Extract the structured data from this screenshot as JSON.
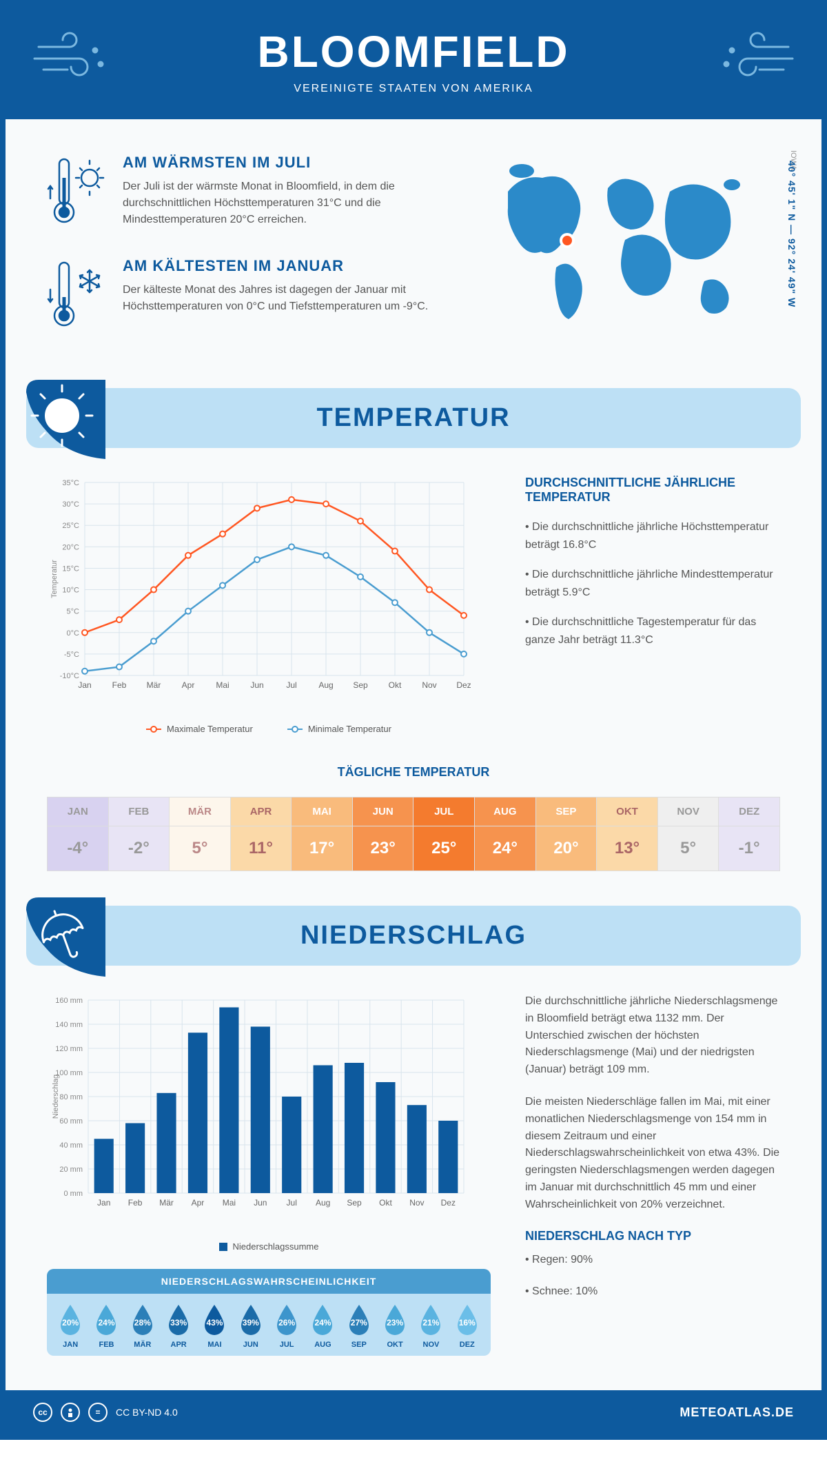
{
  "header": {
    "title": "BLOOMFIELD",
    "subtitle": "VEREINIGTE STAATEN VON AMERIKA"
  },
  "intro": {
    "warmest": {
      "title": "AM WÄRMSTEN IM JULI",
      "text": "Der Juli ist der wärmste Monat in Bloomfield, in dem die durchschnittlichen Höchsttemperaturen 31°C und die Mindesttemperaturen 20°C erreichen."
    },
    "coldest": {
      "title": "AM KÄLTESTEN IM JANUAR",
      "text": "Der kälteste Monat des Jahres ist dagegen der Januar mit Höchsttemperaturen von 0°C und Tiefsttemperaturen um -9°C."
    },
    "region": "IOWA",
    "coords": "40° 45' 1\" N — 92° 24' 49\" W"
  },
  "temperature": {
    "section_title": "TEMPERATUR",
    "chart": {
      "type": "line",
      "months": [
        "Jan",
        "Feb",
        "Mär",
        "Apr",
        "Mai",
        "Jun",
        "Jul",
        "Aug",
        "Sep",
        "Okt",
        "Nov",
        "Dez"
      ],
      "max_series": [
        0,
        3,
        10,
        18,
        23,
        29,
        31,
        30,
        26,
        19,
        10,
        4
      ],
      "min_series": [
        -9,
        -8,
        -2,
        5,
        11,
        17,
        20,
        18,
        13,
        7,
        0,
        -5
      ],
      "max_color": "#ff5722",
      "min_color": "#4a9dd0",
      "yaxis_label": "Temperatur",
      "ylim": [
        -10,
        35
      ],
      "ytick_step": 5,
      "grid_color": "#d8e4ec",
      "background": "#ffffff",
      "legend_max": "Maximale Temperatur",
      "legend_min": "Minimale Temperatur"
    },
    "info": {
      "title": "DURCHSCHNITTLICHE JÄHRLICHE TEMPERATUR",
      "bullets": [
        "• Die durchschnittliche jährliche Höchsttemperatur beträgt 16.8°C",
        "• Die durchschnittliche jährliche Mindesttemperatur beträgt 5.9°C",
        "• Die durchschnittliche Tagestemperatur für das ganze Jahr beträgt 11.3°C"
      ]
    },
    "daily": {
      "title": "TÄGLICHE TEMPERATUR",
      "months": [
        "JAN",
        "FEB",
        "MÄR",
        "APR",
        "MAI",
        "JUN",
        "JUL",
        "AUG",
        "SEP",
        "OKT",
        "NOV",
        "DEZ"
      ],
      "values": [
        "-4°",
        "-2°",
        "5°",
        "11°",
        "17°",
        "23°",
        "25°",
        "24°",
        "20°",
        "13°",
        "5°",
        "-1°"
      ],
      "bg_colors": [
        "#d8d2f0",
        "#e8e4f5",
        "#fdf6ec",
        "#fbd9a8",
        "#f9bb7c",
        "#f6934e",
        "#f47b2e",
        "#f6934e",
        "#f9bb7c",
        "#fbd9a8",
        "#efefef",
        "#e8e4f5"
      ],
      "text_colors": [
        "#999",
        "#999",
        "#b88",
        "#a66",
        "#fff",
        "#fff",
        "#fff",
        "#fff",
        "#fff",
        "#a66",
        "#999",
        "#999"
      ]
    }
  },
  "precipitation": {
    "section_title": "NIEDERSCHLAG",
    "chart": {
      "type": "bar",
      "months": [
        "Jan",
        "Feb",
        "Mär",
        "Apr",
        "Mai",
        "Jun",
        "Jul",
        "Aug",
        "Sep",
        "Okt",
        "Nov",
        "Dez"
      ],
      "values": [
        45,
        58,
        83,
        133,
        154,
        138,
        80,
        106,
        108,
        92,
        73,
        60
      ],
      "bar_color": "#0d5a9e",
      "yaxis_label": "Niederschlag",
      "ylim": [
        0,
        160
      ],
      "ytick_step": 20,
      "grid_color": "#d8e4ec",
      "legend": "Niederschlagssumme"
    },
    "text": {
      "p1": "Die durchschnittliche jährliche Niederschlagsmenge in Bloomfield beträgt etwa 1132 mm. Der Unterschied zwischen der höchsten Niederschlagsmenge (Mai) und der niedrigsten (Januar) beträgt 109 mm.",
      "p2": "Die meisten Niederschläge fallen im Mai, mit einer monatlichen Niederschlagsmenge von 154 mm in diesem Zeitraum und einer Niederschlagswahrscheinlichkeit von etwa 43%. Die geringsten Niederschlagsmengen werden dagegen im Januar mit durchschnittlich 45 mm und einer Wahrscheinlichkeit von 20% verzeichnet.",
      "type_title": "NIEDERSCHLAG NACH TYP",
      "type_bullets": [
        "• Regen: 90%",
        "• Schnee: 10%"
      ]
    },
    "probability": {
      "title": "NIEDERSCHLAGSWAHRSCHEINLICHKEIT",
      "months": [
        "JAN",
        "FEB",
        "MÄR",
        "APR",
        "MAI",
        "JUN",
        "JUL",
        "AUG",
        "SEP",
        "OKT",
        "NOV",
        "DEZ"
      ],
      "values": [
        "20%",
        "24%",
        "28%",
        "33%",
        "43%",
        "39%",
        "26%",
        "24%",
        "27%",
        "23%",
        "21%",
        "16%"
      ],
      "colors": [
        "#5ab3e0",
        "#4aa8d8",
        "#2b7fb8",
        "#1a6ba8",
        "#0d5a9e",
        "#1a6ba8",
        "#3d95cc",
        "#4aa8d8",
        "#2b7fb8",
        "#4aa8d8",
        "#5ab3e0",
        "#6bbee8"
      ]
    }
  },
  "footer": {
    "license": "CC BY-ND 4.0",
    "site": "METEOATLAS.DE"
  },
  "colors": {
    "primary": "#0d5a9e",
    "light_blue": "#bde0f5",
    "map_blue": "#2b8ac9"
  }
}
